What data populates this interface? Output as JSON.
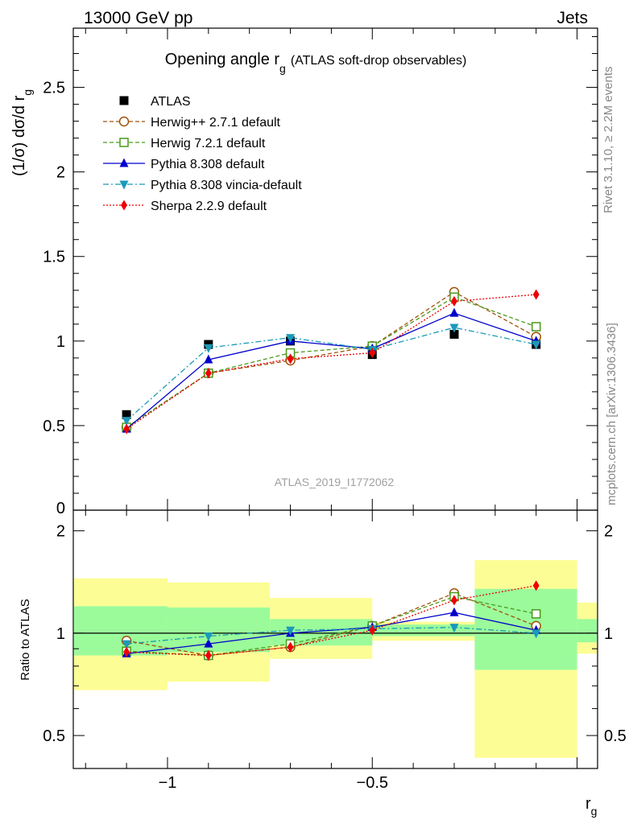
{
  "header": {
    "energy": "13000 GeV pp",
    "process": "Jets"
  },
  "side_text": {
    "rivet": "Rivet 3.1.10, ≥ 2.2M events",
    "source": "mcplots.cern.ch [arXiv:1306.3436]"
  },
  "analysis_id": "ATLAS_2019_I1772062",
  "chart_data": [
    {
      "type": "line",
      "panel": "main",
      "title_main": "Opening angle r",
      "title_sub": "g",
      "title_extra": "(ATLAS soft-drop observables)",
      "ylabel": "(1/σ) dσ/d r",
      "ylabel_sub": "g",
      "ylim": [
        0,
        2.85
      ],
      "yticks": [
        "0.5",
        "1",
        "1.5",
        "2",
        "2.5"
      ],
      "ytick_values": [
        0.5,
        1,
        1.5,
        2,
        2.5
      ],
      "bottom_tick_label": "0",
      "legend_placement": "top-left",
      "x": [
        -1.1,
        -0.9,
        -0.7,
        -0.5,
        -0.3,
        -0.1
      ],
      "series": [
        {
          "name": "ATLAS",
          "color": "#000000",
          "marker": "square-filled",
          "line": "none",
          "values": [
            0.565,
            0.98,
            1.0,
            0.92,
            1.04,
            0.98
          ]
        },
        {
          "name": "Herwig++ 2.7.1 default",
          "color": "#a0520a",
          "marker": "circle-open",
          "line": "dashed",
          "values": [
            0.49,
            0.81,
            0.885,
            0.97,
            1.29,
            1.025
          ]
        },
        {
          "name": "Herwig 7.2.1 default",
          "color": "#4a9a1a",
          "marker": "square-open",
          "line": "dashed",
          "values": [
            0.49,
            0.81,
            0.93,
            0.97,
            1.26,
            1.085
          ]
        },
        {
          "name": "Pythia 8.308 default",
          "color": "#0000cc",
          "marker": "triangle-up",
          "line": "solid",
          "values": [
            0.48,
            0.89,
            1.0,
            0.955,
            1.165,
            1.0
          ]
        },
        {
          "name": "Pythia 8.308 vincia-default",
          "color": "#1a9ab8",
          "marker": "triangle-down",
          "line": "dashdot",
          "values": [
            0.53,
            0.96,
            1.02,
            0.95,
            1.08,
            0.98
          ]
        },
        {
          "name": "Sherpa 2.2.9 default",
          "color": "#ee0000",
          "marker": "diamond",
          "line": "dotted",
          "values": [
            0.48,
            0.81,
            0.895,
            0.93,
            1.235,
            1.275
          ]
        }
      ]
    },
    {
      "type": "line",
      "panel": "ratio",
      "ylabel": "Ratio to ATLAS",
      "ylim": [
        0.4,
        2.3
      ],
      "yticks": [
        "0.5",
        "1",
        "2"
      ],
      "ytick_values": [
        0.5,
        1,
        2
      ],
      "xlabel": "r",
      "xlabel_sub": "g",
      "xlim": [
        -1.23,
        0.05
      ],
      "xticks": [
        "−1",
        "−0.5"
      ],
      "xtick_values": [
        -1,
        -0.5
      ],
      "bins": [
        [
          -1.25,
          -1.0
        ],
        [
          -1.0,
          -0.75
        ],
        [
          -0.75,
          -0.5
        ],
        [
          -0.5,
          -0.25
        ],
        [
          -0.25,
          0.0
        ],
        [
          0.0,
          0.125
        ]
      ],
      "bands_inner": [
        [
          0.86,
          1.2
        ],
        [
          0.88,
          1.19
        ],
        [
          0.92,
          1.1
        ],
        [
          0.98,
          1.06
        ],
        [
          0.78,
          1.35
        ],
        [
          0.94,
          1.1
        ]
      ],
      "bands_outer": [
        [
          0.68,
          1.45
        ],
        [
          0.72,
          1.41
        ],
        [
          0.84,
          1.27
        ],
        [
          0.95,
          1.08
        ],
        [
          0.43,
          1.64
        ],
        [
          0.87,
          1.23
        ]
      ],
      "x": [
        -1.1,
        -0.9,
        -0.7,
        -0.5,
        -0.3,
        -0.1
      ],
      "series": [
        {
          "name": "Herwig++ 2.7.1 default",
          "values": [
            0.95,
            0.86,
            0.91,
            1.05,
            1.31,
            1.05
          ]
        },
        {
          "name": "Herwig 7.2.1 default",
          "values": [
            0.885,
            0.86,
            0.93,
            1.05,
            1.28,
            1.14
          ]
        },
        {
          "name": "Pythia 8.308 default",
          "values": [
            0.87,
            0.93,
            1.0,
            1.04,
            1.15,
            1.02
          ]
        },
        {
          "name": "Pythia 8.308 vincia-default",
          "values": [
            0.93,
            0.98,
            1.02,
            1.03,
            1.04,
            1.0
          ]
        },
        {
          "name": "Sherpa 2.2.9 default",
          "values": [
            0.88,
            0.86,
            0.91,
            1.02,
            1.25,
            1.38
          ]
        }
      ],
      "colors": {
        "inner_band": "#9bfb9b",
        "outer_band": "#fdfd96",
        "reference_line": "#000000"
      }
    }
  ]
}
